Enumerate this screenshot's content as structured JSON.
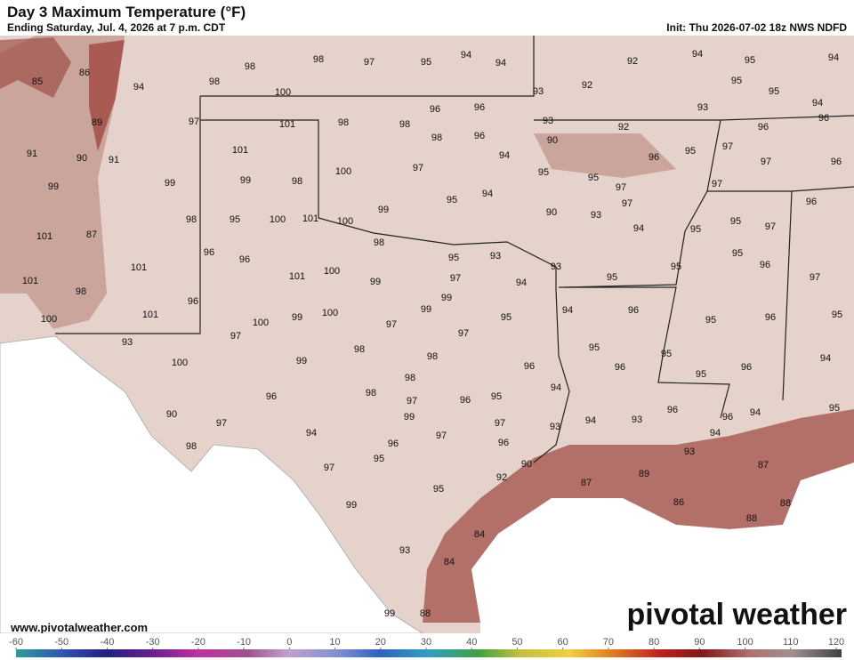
{
  "header": {
    "title": "Day 3 Maximum Temperature (°F)",
    "subtitle": "Ending Saturday, Jul. 4, 2026 at 7 p.m. CDT",
    "init": "Init: Thu 2026-07-02 18z NWS NDFD"
  },
  "map": {
    "labels": [
      98,
      98,
      97,
      95,
      94,
      94,
      92,
      94,
      95,
      94,
      85,
      86,
      94,
      98,
      100,
      93,
      92,
      95,
      95,
      93,
      94,
      89,
      97,
      101,
      98,
      98,
      96,
      96,
      93,
      92,
      96,
      96,
      91,
      90,
      91,
      101,
      98,
      96,
      90,
      94,
      96,
      95,
      97,
      97,
      96,
      99,
      99,
      99,
      98,
      100,
      97,
      95,
      95,
      97,
      97,
      96,
      94,
      95,
      97,
      99,
      90,
      93,
      101,
      87,
      98,
      95,
      100,
      101,
      100,
      95,
      97,
      94,
      95,
      98,
      96,
      96,
      95,
      93,
      93,
      95,
      96,
      95,
      101,
      101,
      101,
      100,
      99,
      97,
      94,
      95,
      97,
      98,
      96,
      99,
      94,
      96,
      95,
      96,
      95,
      100,
      101,
      100,
      99,
      100,
      99,
      95,
      97,
      93,
      97,
      97,
      98,
      95,
      95,
      94,
      100,
      99,
      98,
      96,
      96,
      95,
      96,
      98,
      96,
      98,
      97,
      95,
      96,
      94,
      90,
      97,
      99,
      97,
      93,
      94,
      93,
      96,
      96,
      94,
      95,
      98,
      94,
      97,
      96,
      96,
      94,
      89,
      97,
      95,
      93,
      90,
      87,
      95,
      92,
      87,
      99,
      86,
      88,
      88,
      84,
      93,
      84,
      99,
      88
    ]
  },
  "footer": {
    "website": "www.pivotalweather.com",
    "logo": "pivotal weather"
  },
  "colorbar": {
    "ticks": [
      -60,
      -50,
      -40,
      -30,
      -20,
      -10,
      0,
      10,
      20,
      30,
      40,
      50,
      60,
      70,
      80,
      90,
      100,
      110,
      120
    ]
  }
}
